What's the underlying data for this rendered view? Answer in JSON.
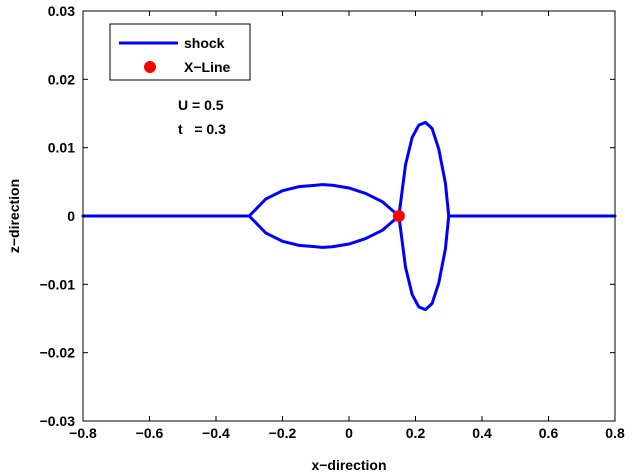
{
  "chart_data": {
    "type": "line",
    "xlabel": "x−direction",
    "ylabel": "z−direction",
    "xlim": [
      -0.8,
      0.8
    ],
    "ylim": [
      -0.03,
      0.03
    ],
    "xticks": [
      -0.8,
      -0.6,
      -0.4,
      -0.2,
      0,
      0.2,
      0.4,
      0.6,
      0.8
    ],
    "xtick_labels": [
      "−0.8",
      "−0.6",
      "−0.4",
      "−0.2",
      "0",
      "0.2",
      "0.4",
      "0.6",
      "0.8"
    ],
    "yticks": [
      -0.03,
      -0.02,
      -0.01,
      0,
      0.01,
      0.02,
      0.03
    ],
    "ytick_labels": [
      "−0.03",
      "−0.02",
      "−0.01",
      "0",
      "0.01",
      "0.02",
      "0.03"
    ],
    "grid": false,
    "legend_position": "top-left",
    "series": [
      {
        "name": "shock",
        "color": "#0000ff",
        "segments": [
          {
            "x": [
              -0.8,
              -0.3
            ],
            "y": [
              0,
              0
            ]
          },
          {
            "x": [
              -0.3,
              -0.25,
              -0.2,
              -0.15,
              -0.1,
              -0.08,
              -0.05,
              0,
              0.05,
              0.1,
              0.15
            ],
            "y": [
              0,
              0.0025,
              0.0037,
              0.0043,
              0.0045,
              0.0046,
              0.0045,
              0.0041,
              0.0033,
              0.0021,
              0
            ]
          },
          {
            "x": [
              -0.3,
              -0.25,
              -0.2,
              -0.15,
              -0.1,
              -0.08,
              -0.05,
              0,
              0.05,
              0.1,
              0.15
            ],
            "y": [
              0,
              -0.0025,
              -0.0037,
              -0.0043,
              -0.0045,
              -0.0046,
              -0.0045,
              -0.0041,
              -0.0033,
              -0.0021,
              0
            ]
          },
          {
            "x": [
              0.15,
              0.17,
              0.19,
              0.21,
              0.23,
              0.25,
              0.27,
              0.29,
              0.3
            ],
            "y": [
              0,
              0.0075,
              0.0115,
              0.0133,
              0.0137,
              0.0128,
              0.0098,
              0.0048,
              0
            ]
          },
          {
            "x": [
              0.15,
              0.17,
              0.19,
              0.21,
              0.23,
              0.25,
              0.27,
              0.29,
              0.3
            ],
            "y": [
              0,
              -0.0075,
              -0.0115,
              -0.0133,
              -0.0137,
              -0.0128,
              -0.0098,
              -0.0048,
              0
            ]
          },
          {
            "x": [
              0.3,
              0.8
            ],
            "y": [
              0,
              0
            ]
          }
        ]
      },
      {
        "name": "X−Line",
        "color": "#ff0000",
        "points": [
          {
            "x": 0.15,
            "y": 0
          }
        ]
      }
    ],
    "annotations": [
      "U = 0.5",
      "t   = 0.3"
    ]
  }
}
